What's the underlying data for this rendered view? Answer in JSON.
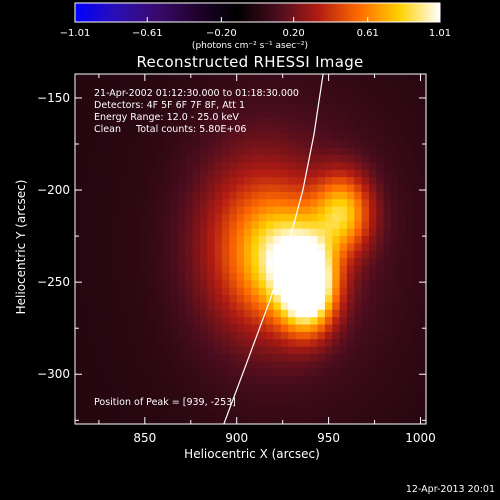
{
  "chart_data": {
    "type": "heatmap",
    "title": "Reconstructed RHESSI Image",
    "xlabel": "Heliocentric X (arcsec)",
    "ylabel": "Heliocentric Y (arcsec)",
    "xlim": [
      812,
      1003
    ],
    "ylim": [
      -327,
      -137
    ],
    "x_ticks": [
      850,
      900,
      950,
      1000
    ],
    "y_ticks": [
      -150,
      -200,
      -250,
      -300
    ],
    "x_tick_labels": [
      "850",
      "900",
      "950",
      "1000"
    ],
    "y_tick_labels": [
      "−150",
      "−200",
      "−250",
      "−300"
    ],
    "annotations": {
      "time_range": "21-Apr-2002 01:12:30.000 to 01:18:30.000",
      "detectors": "Detectors: 4F 5F 6F 7F 8F, Att 1",
      "energy_range": "Energy Range: 12.0 - 25.0 keV",
      "method_counts": "Clean     Total counts: 5.80E+06",
      "peak_position": "Position of Peak = [939, -253]"
    },
    "peak": [
      939,
      -253
    ],
    "colorbar": {
      "min": -1.01,
      "max": 1.01,
      "tick_values": [
        -1.01,
        -0.61,
        -0.2,
        0.2,
        0.61,
        1.01
      ],
      "tick_labels": [
        "−1.01",
        "−0.61",
        "−0.20",
        "0.20",
        "0.61",
        "1.01"
      ],
      "unit_label": "(photons cm⁻² s⁻¹ asec⁻²)"
    },
    "sources": [
      {
        "x": 939,
        "y": -253,
        "amplitude": 1.0,
        "sx": 10,
        "sy": 16
      },
      {
        "x": 928,
        "y": -238,
        "amplitude": 0.55,
        "sx": 16,
        "sy": 22
      },
      {
        "x": 958,
        "y": -212,
        "amplitude": 0.62,
        "sx": 11,
        "sy": 15
      },
      {
        "x": 908,
        "y": -230,
        "amplitude": 0.35,
        "sx": 22,
        "sy": 34
      },
      {
        "x": 930,
        "y": -230,
        "amplitude": 0.18,
        "sx": 42,
        "sy": 58
      }
    ],
    "limb_curve": [
      [
        893,
        -327
      ],
      [
        905,
        -295
      ],
      [
        918,
        -260
      ],
      [
        928,
        -230
      ],
      [
        936,
        -200
      ],
      [
        942,
        -170
      ],
      [
        947,
        -137
      ]
    ],
    "colors": {
      "limb": "#ffffff",
      "colormap": [
        "#0000ff",
        "#2a0fb5",
        "#3a0a6e",
        "#20022e",
        "#000000",
        "#4a0d1e",
        "#b21c13",
        "#ff6a00",
        "#ffd000",
        "#ffffff"
      ]
    }
  },
  "footer": {
    "timestamp": "12-Apr-2013 20:01"
  }
}
